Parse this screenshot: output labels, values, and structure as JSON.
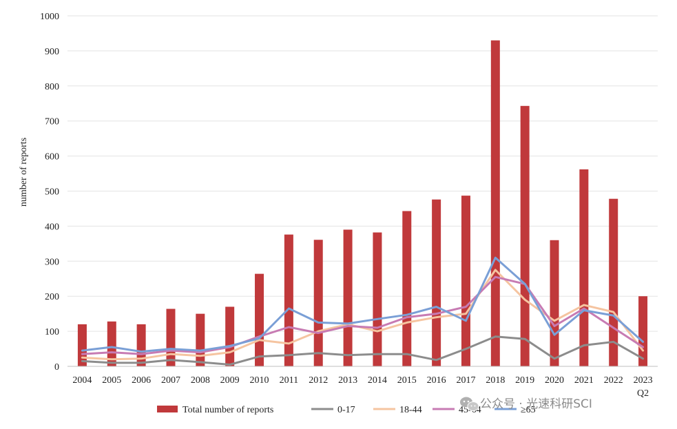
{
  "chart_data": {
    "type": "bar",
    "title": "",
    "xlabel": "",
    "ylabel": "number of reports",
    "ylim": [
      0,
      1000
    ],
    "yticks": [
      0,
      100,
      200,
      300,
      400,
      500,
      600,
      700,
      800,
      900,
      1000
    ],
    "grid": true,
    "categories": [
      "2004",
      "2005",
      "2006",
      "2007",
      "2008",
      "2009",
      "2010",
      "2011",
      "2012",
      "2013",
      "2014",
      "2015",
      "2016",
      "2017",
      "2018",
      "2019",
      "2020",
      "2021",
      "2022",
      "2023"
    ],
    "last_category_sublabel": "Q2",
    "bar_series": {
      "name": "Total number of reports",
      "color": "#c0393b",
      "values": [
        120,
        128,
        120,
        164,
        150,
        170,
        264,
        376,
        361,
        390,
        382,
        443,
        476,
        487,
        930,
        743,
        360,
        562,
        478,
        200
      ]
    },
    "line_series": [
      {
        "name": "0-17",
        "color": "#8c8c8c",
        "values": [
          15,
          10,
          10,
          18,
          12,
          5,
          28,
          32,
          38,
          32,
          35,
          35,
          18,
          50,
          85,
          78,
          22,
          60,
          70,
          22
        ]
      },
      {
        "name": "18-44",
        "color": "#f5c4a0",
        "values": [
          25,
          20,
          22,
          35,
          30,
          40,
          75,
          65,
          100,
          120,
          100,
          125,
          140,
          150,
          275,
          190,
          130,
          175,
          155,
          45
        ]
      },
      {
        "name": "45-64",
        "color": "#c77bb3",
        "values": [
          35,
          40,
          35,
          45,
          40,
          55,
          85,
          112,
          95,
          115,
          110,
          140,
          150,
          170,
          255,
          235,
          115,
          165,
          110,
          55
        ]
      },
      {
        "name": "≥65",
        "color": "#7a9fd6",
        "values": [
          45,
          55,
          42,
          50,
          45,
          58,
          80,
          165,
          125,
          122,
          135,
          147,
          170,
          130,
          310,
          235,
          90,
          160,
          145,
          70
        ]
      }
    ],
    "legend_position": "bottom"
  },
  "watermark": {
    "text": "公众号 · 光速科研SCI",
    "icon": "wechat-icon"
  }
}
